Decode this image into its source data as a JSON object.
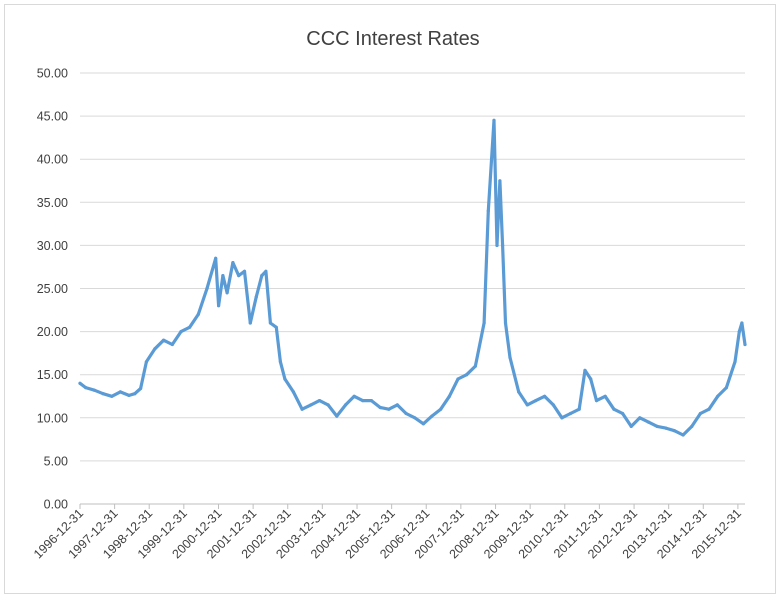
{
  "chart_data": {
    "type": "line",
    "title": "CCC Interest Rates",
    "xlabel": "",
    "ylabel": "",
    "ylim": [
      0,
      50
    ],
    "xlim": [
      "1996-12-31",
      "2016-03-15"
    ],
    "y_ticks": [
      "0.00",
      "5.00",
      "10.00",
      "15.00",
      "20.00",
      "25.00",
      "30.00",
      "35.00",
      "40.00",
      "45.00",
      "50.00"
    ],
    "x_ticks": [
      "1996-12-31",
      "1997-12-31",
      "1998-12-31",
      "1999-12-31",
      "2000-12-31",
      "2001-12-31",
      "2002-12-31",
      "2003-12-31",
      "2004-12-31",
      "2005-12-31",
      "2006-12-31",
      "2007-12-31",
      "2008-12-31",
      "2009-12-31",
      "2010-12-31",
      "2011-12-31",
      "2012-12-31",
      "2013-12-31",
      "2014-12-31",
      "2015-12-31"
    ],
    "grid": true,
    "legend": "none",
    "color": "#5b9bd5",
    "series": [
      {
        "x": [
          "1996-12-31",
          "1997-03-01",
          "1997-06-01",
          "1997-09-01",
          "1997-12-01",
          "1998-03-01",
          "1998-06-01",
          "1998-08-01",
          "1998-10-01",
          "1998-12-01",
          "1999-03-01",
          "1999-06-01",
          "1999-09-01",
          "1999-12-01",
          "2000-03-01",
          "2000-06-01",
          "2000-09-01",
          "2000-12-01",
          "2001-01-01",
          "2001-02-15",
          "2001-04-01",
          "2001-06-01",
          "2001-08-01",
          "2001-10-01",
          "2001-12-01",
          "2002-02-01",
          "2002-04-01",
          "2002-05-15",
          "2002-07-01",
          "2002-09-01",
          "2002-10-15",
          "2002-12-01",
          "2003-03-01",
          "2003-06-01",
          "2003-09-01",
          "2003-12-01",
          "2004-03-01",
          "2004-06-01",
          "2004-09-01",
          "2004-12-01",
          "2005-03-01",
          "2005-06-01",
          "2005-09-01",
          "2005-12-01",
          "2006-03-01",
          "2006-06-01",
          "2006-09-01",
          "2006-12-01",
          "2007-03-01",
          "2007-06-01",
          "2007-09-01",
          "2007-12-01",
          "2008-03-01",
          "2008-06-01",
          "2008-09-01",
          "2008-10-15",
          "2008-12-15",
          "2009-01-15",
          "2009-02-15",
          "2009-03-15",
          "2009-04-15",
          "2009-06-01",
          "2009-09-01",
          "2009-12-01",
          "2010-03-01",
          "2010-06-01",
          "2010-09-01",
          "2010-12-01",
          "2011-03-01",
          "2011-06-01",
          "2011-08-01",
          "2011-10-01",
          "2011-12-01",
          "2012-03-01",
          "2012-06-01",
          "2012-09-01",
          "2012-12-01",
          "2013-03-01",
          "2013-06-01",
          "2013-09-01",
          "2013-12-01",
          "2014-03-01",
          "2014-06-01",
          "2014-09-01",
          "2014-12-01",
          "2015-03-01",
          "2015-06-01",
          "2015-09-01",
          "2015-12-01",
          "2016-01-15",
          "2016-02-11",
          "2016-03-15"
        ],
        "values": [
          14.0,
          13.5,
          13.2,
          12.8,
          12.5,
          13.0,
          12.6,
          12.8,
          13.4,
          16.5,
          18.0,
          19.0,
          18.5,
          20.0,
          20.5,
          22.0,
          25.0,
          28.5,
          23.0,
          26.5,
          24.5,
          28.0,
          26.5,
          27.0,
          21.0,
          24.0,
          26.5,
          27.0,
          21.0,
          20.5,
          16.5,
          14.5,
          13.0,
          11.0,
          11.5,
          12.0,
          11.5,
          10.2,
          11.5,
          12.5,
          12.0,
          12.0,
          11.2,
          11.0,
          11.5,
          10.5,
          10.0,
          9.3,
          10.2,
          11.0,
          12.5,
          14.5,
          15.0,
          16.0,
          21.0,
          34.0,
          44.5,
          30.0,
          37.5,
          30.0,
          21.0,
          17.0,
          13.0,
          11.5,
          12.0,
          12.5,
          11.5,
          10.0,
          10.5,
          11.0,
          15.5,
          14.5,
          12.0,
          12.5,
          11.0,
          10.5,
          9.0,
          10.0,
          9.5,
          9.0,
          8.8,
          8.5,
          8.0,
          9.0,
          10.5,
          11.0,
          12.5,
          13.5,
          16.5,
          20.0,
          21.0,
          18.5
        ]
      }
    ]
  }
}
